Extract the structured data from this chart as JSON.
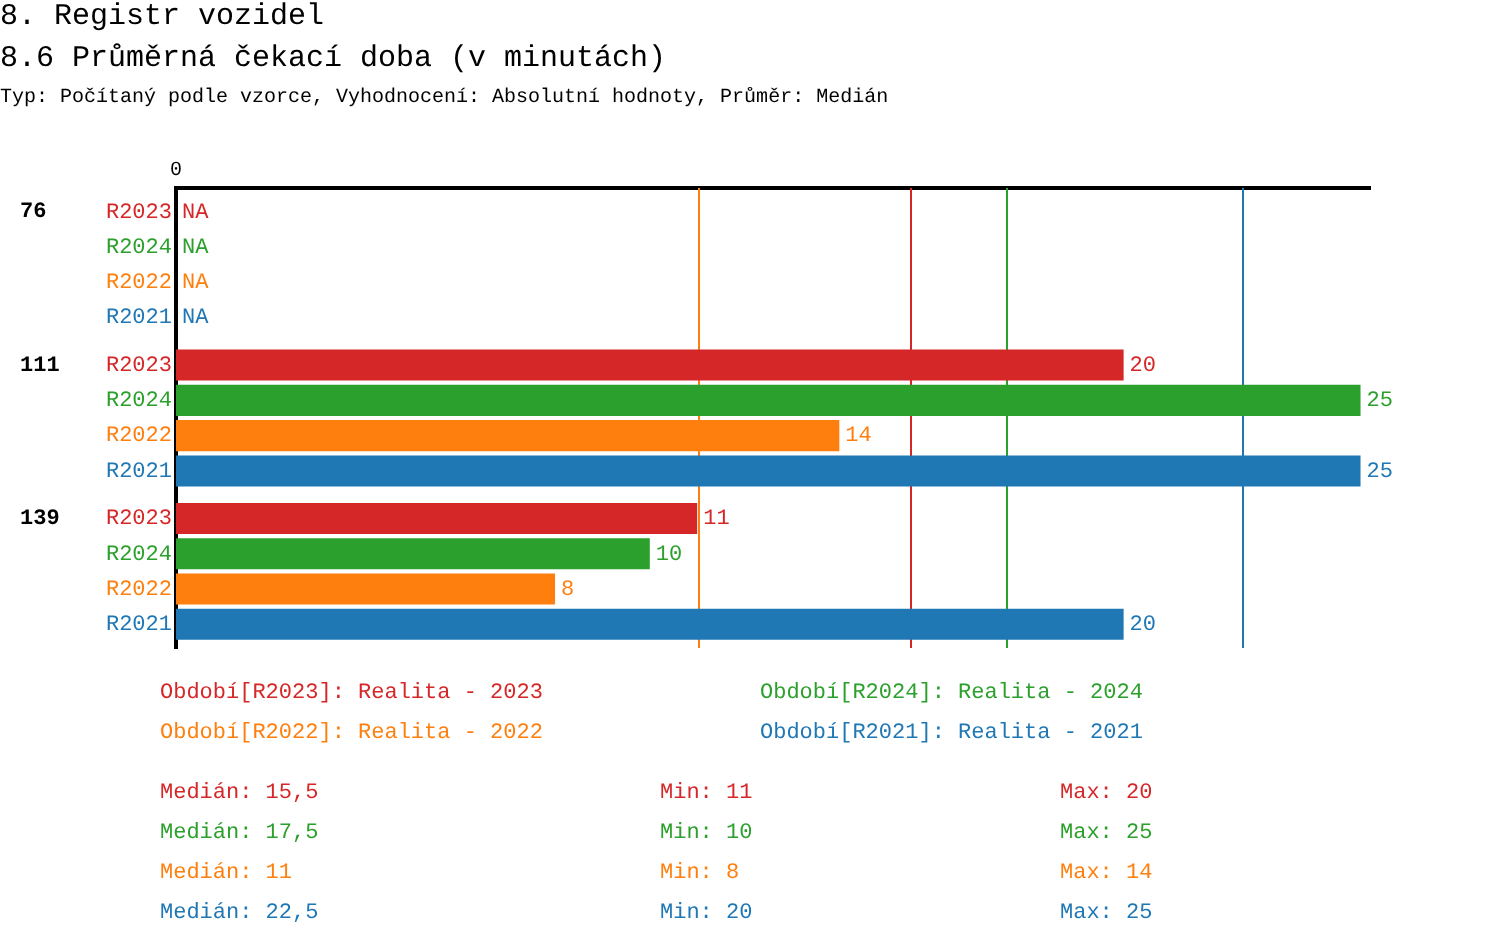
{
  "chart_data": {
    "type": "bar",
    "orientation": "horizontal",
    "title": "8. Registr vozidel",
    "subtitle": "8.6 Průměrná čekací doba (v minutách)",
    "categories": [
      "76",
      "111",
      "139"
    ],
    "series": [
      {
        "name": "R2023",
        "color": "#d62728",
        "values": [
          null,
          20,
          11
        ],
        "value_labels": [
          "NA",
          "20",
          "11"
        ]
      },
      {
        "name": "R2024",
        "color": "#2ca02c",
        "values": [
          null,
          25,
          10
        ],
        "value_labels": [
          "NA",
          "25",
          "10"
        ]
      },
      {
        "name": "R2022",
        "color": "#ff7f0e",
        "values": [
          null,
          14,
          8
        ],
        "value_labels": [
          "NA",
          "14",
          "8"
        ]
      },
      {
        "name": "R2021",
        "color": "#1f77b4",
        "values": [
          null,
          25,
          20
        ],
        "value_labels": [
          "NA",
          "25",
          "20"
        ]
      }
    ],
    "legend": false,
    "ref_lines": [
      {
        "axis": "x",
        "value": 15.5,
        "color": "#d62728"
      },
      {
        "axis": "x",
        "value": 17.5,
        "color": "#2ca02c"
      },
      {
        "axis": "x",
        "value": 11,
        "color": "#ff7f0e"
      },
      {
        "axis": "x",
        "value": 22.5,
        "color": "#1f77b4"
      }
    ],
    "annotations": [
      "Typ: Počítaný podle vzorce, Vyhodnocení: Absolutní hodnoty, Průměr: Medián",
      "Období[R2023]: Realita - 2023",
      "Období[R2024]: Realita - 2024",
      "Období[R2022]: Realita - 2022",
      "Období[R2021]: Realita - 2021",
      "Medián: 15,5",
      "Min: 11",
      "Max: 20",
      "Medián: 17,5",
      "Min: 10",
      "Max: 25",
      "Medián: 11",
      "Min: 8",
      "Max: 14",
      "Medián: 22,5",
      "Min: 20",
      "Max: 25",
      "0"
    ]
  }
}
